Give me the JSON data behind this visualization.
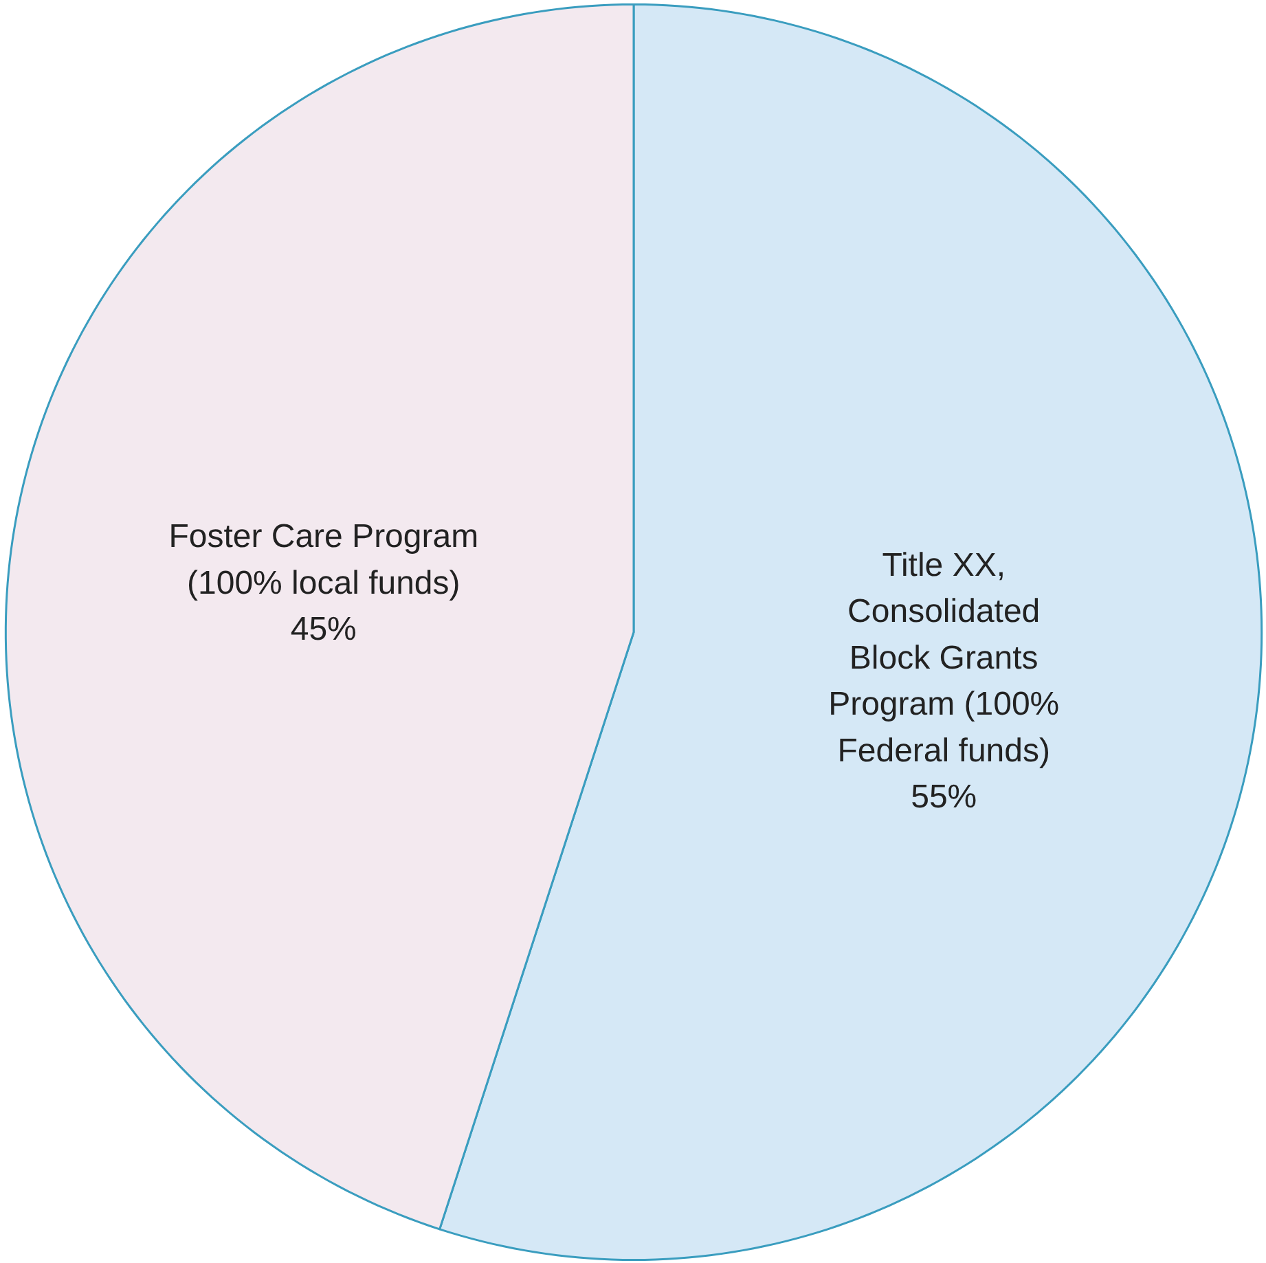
{
  "chart_data": {
    "type": "pie",
    "categories": [
      "Title XX, Consolidated Block Grants Program (100% Federal funds)",
      "Foster Care Program (100% local funds)"
    ],
    "values": [
      55,
      45
    ],
    "value_labels": [
      "55%",
      "45%"
    ],
    "colors": [
      "#d5e8f6",
      "#f3e9ef"
    ]
  }
}
